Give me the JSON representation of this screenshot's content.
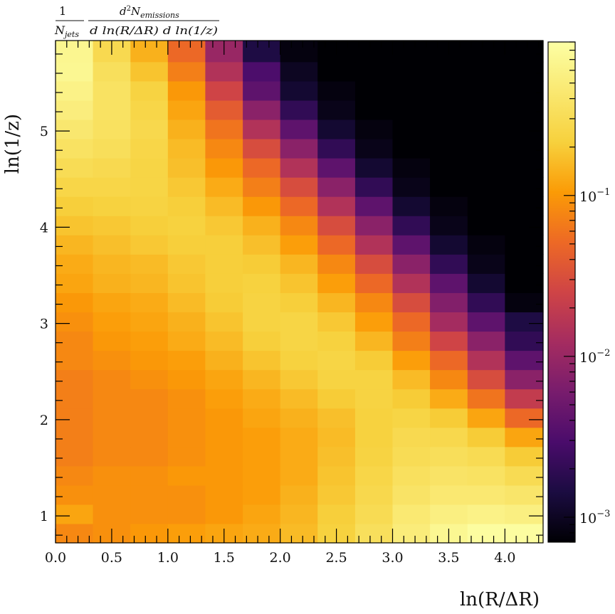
{
  "chart_data": {
    "type": "heatmap",
    "title": "",
    "header_label": {
      "prefix_num": "1",
      "prefix_den": "N",
      "prefix_den_sub": "jets",
      "num_d": "d",
      "num_sup": "2",
      "num_N": "N",
      "num_sub": "emissions",
      "den": "d ln(R/ΔR) d ln(1/z)"
    },
    "xlabel": "ln(R/ΔR)",
    "ylabel": "ln(1/z)",
    "xlim": [
      0.0,
      4.34
    ],
    "ylim": [
      0.72,
      5.94
    ],
    "x_ticks": [
      0.0,
      0.5,
      1.0,
      1.5,
      2.0,
      2.5,
      3.0,
      3.5,
      4.0
    ],
    "x_tick_labels": [
      "0.0",
      "0.5",
      "1.0",
      "1.5",
      "2.0",
      "2.5",
      "3.0",
      "3.5",
      "4.0"
    ],
    "y_ticks": [
      1,
      2,
      3,
      4,
      5
    ],
    "y_tick_labels": [
      "1",
      "2",
      "3",
      "4",
      "5"
    ],
    "colorbar": {
      "scale": "log",
      "range": [
        0.0007,
        0.9
      ],
      "colormap": "inferno",
      "major_ticks": [
        0.001,
        0.01,
        0.1
      ],
      "tick_labels": [
        {
          "base": "10",
          "exp": "−3"
        },
        {
          "base": "10",
          "exp": "−2"
        },
        {
          "base": "10",
          "exp": "−1"
        }
      ]
    },
    "x_bin_edges": [
      0.0,
      0.333,
      0.667,
      1.0,
      1.333,
      1.667,
      2.0,
      2.333,
      2.667,
      3.0,
      3.333,
      3.667,
      4.0,
      4.34
    ],
    "y_bin_edges": [
      0.72,
      0.92,
      1.12,
      1.32,
      1.52,
      1.72,
      1.92,
      2.12,
      2.32,
      2.52,
      2.72,
      2.92,
      3.12,
      3.32,
      3.52,
      3.72,
      3.92,
      4.12,
      4.32,
      4.52,
      4.72,
      4.92,
      5.12,
      5.32,
      5.52,
      5.72,
      5.94
    ],
    "values_note": "",
    "values": [
      [
        0.08,
        0.09,
        0.1,
        0.11,
        0.12,
        0.13,
        0.16,
        0.22,
        0.33,
        0.5,
        0.7,
        0.85,
        0.85
      ],
      [
        0.12,
        0.09,
        0.09,
        0.09,
        0.1,
        0.12,
        0.15,
        0.21,
        0.29,
        0.45,
        0.55,
        0.6,
        0.55
      ],
      [
        0.09,
        0.09,
        0.09,
        0.09,
        0.1,
        0.11,
        0.14,
        0.19,
        0.27,
        0.38,
        0.44,
        0.44,
        0.4
      ],
      [
        0.08,
        0.09,
        0.09,
        0.1,
        0.1,
        0.11,
        0.13,
        0.18,
        0.25,
        0.34,
        0.38,
        0.36,
        0.29
      ],
      [
        0.07,
        0.08,
        0.08,
        0.09,
        0.1,
        0.11,
        0.13,
        0.17,
        0.23,
        0.3,
        0.32,
        0.29,
        0.2
      ],
      [
        0.07,
        0.08,
        0.08,
        0.09,
        0.1,
        0.11,
        0.13,
        0.16,
        0.22,
        0.28,
        0.27,
        0.2,
        0.12
      ],
      [
        0.07,
        0.08,
        0.08,
        0.09,
        0.1,
        0.12,
        0.14,
        0.17,
        0.22,
        0.24,
        0.2,
        0.12,
        0.05
      ],
      [
        0.07,
        0.08,
        0.08,
        0.09,
        0.11,
        0.13,
        0.16,
        0.2,
        0.23,
        0.2,
        0.13,
        0.06,
        0.02
      ],
      [
        0.07,
        0.08,
        0.09,
        0.1,
        0.12,
        0.15,
        0.19,
        0.23,
        0.23,
        0.16,
        0.08,
        0.03,
        0.008
      ],
      [
        0.08,
        0.09,
        0.1,
        0.11,
        0.14,
        0.18,
        0.22,
        0.24,
        0.2,
        0.11,
        0.05,
        0.015,
        0.004
      ],
      [
        0.08,
        0.1,
        0.11,
        0.13,
        0.16,
        0.21,
        0.24,
        0.22,
        0.15,
        0.07,
        0.025,
        0.008,
        0.002
      ],
      [
        0.09,
        0.11,
        0.12,
        0.14,
        0.18,
        0.23,
        0.24,
        0.19,
        0.11,
        0.05,
        0.012,
        0.004,
        0.0015
      ],
      [
        0.1,
        0.12,
        0.13,
        0.16,
        0.2,
        0.23,
        0.21,
        0.15,
        0.08,
        0.03,
        0.007,
        0.002,
        0.0008
      ],
      [
        0.12,
        0.14,
        0.15,
        0.18,
        0.21,
        0.22,
        0.18,
        0.11,
        0.05,
        0.015,
        0.004,
        0.0012,
        0.0007
      ],
      [
        0.13,
        0.15,
        0.16,
        0.19,
        0.21,
        0.2,
        0.15,
        0.08,
        0.03,
        0.008,
        0.002,
        0.0009,
        0.0007
      ],
      [
        0.15,
        0.17,
        0.19,
        0.21,
        0.21,
        0.17,
        0.11,
        0.05,
        0.015,
        0.004,
        0.0012,
        0.0008,
        0.0007
      ],
      [
        0.18,
        0.19,
        0.21,
        0.22,
        0.19,
        0.14,
        0.08,
        0.03,
        0.008,
        0.002,
        0.0009,
        0.0007,
        0.0007
      ],
      [
        0.21,
        0.22,
        0.23,
        0.21,
        0.16,
        0.1,
        0.05,
        0.015,
        0.004,
        0.0012,
        0.0008,
        0.0007,
        0.0007
      ],
      [
        0.25,
        0.25,
        0.24,
        0.19,
        0.13,
        0.07,
        0.03,
        0.008,
        0.002,
        0.0009,
        0.0007,
        0.0007,
        0.0007
      ],
      [
        0.3,
        0.28,
        0.24,
        0.17,
        0.1,
        0.05,
        0.015,
        0.004,
        0.0012,
        0.0008,
        0.0007,
        0.0007,
        0.0007
      ],
      [
        0.36,
        0.32,
        0.25,
        0.16,
        0.08,
        0.03,
        0.008,
        0.002,
        0.0009,
        0.0007,
        0.0007,
        0.0007,
        0.0007
      ],
      [
        0.43,
        0.35,
        0.27,
        0.14,
        0.06,
        0.015,
        0.004,
        0.0012,
        0.0008,
        0.0007,
        0.0007,
        0.0007,
        0.0007
      ],
      [
        0.52,
        0.36,
        0.25,
        0.12,
        0.04,
        0.008,
        0.002,
        0.0009,
        0.0007,
        0.0007,
        0.0007,
        0.0007,
        0.0007
      ],
      [
        0.6,
        0.36,
        0.23,
        0.1,
        0.025,
        0.004,
        0.0012,
        0.0008,
        0.0007,
        0.0007,
        0.0007,
        0.0007,
        0.0007
      ],
      [
        0.7,
        0.33,
        0.18,
        0.07,
        0.015,
        0.003,
        0.001,
        0.0007,
        0.0007,
        0.0007,
        0.0007,
        0.0007,
        0.0007
      ],
      [
        0.68,
        0.28,
        0.14,
        0.05,
        0.01,
        0.0015,
        0.0008,
        0.0007,
        0.0007,
        0.0007,
        0.0007,
        0.0007,
        0.0007
      ]
    ]
  }
}
